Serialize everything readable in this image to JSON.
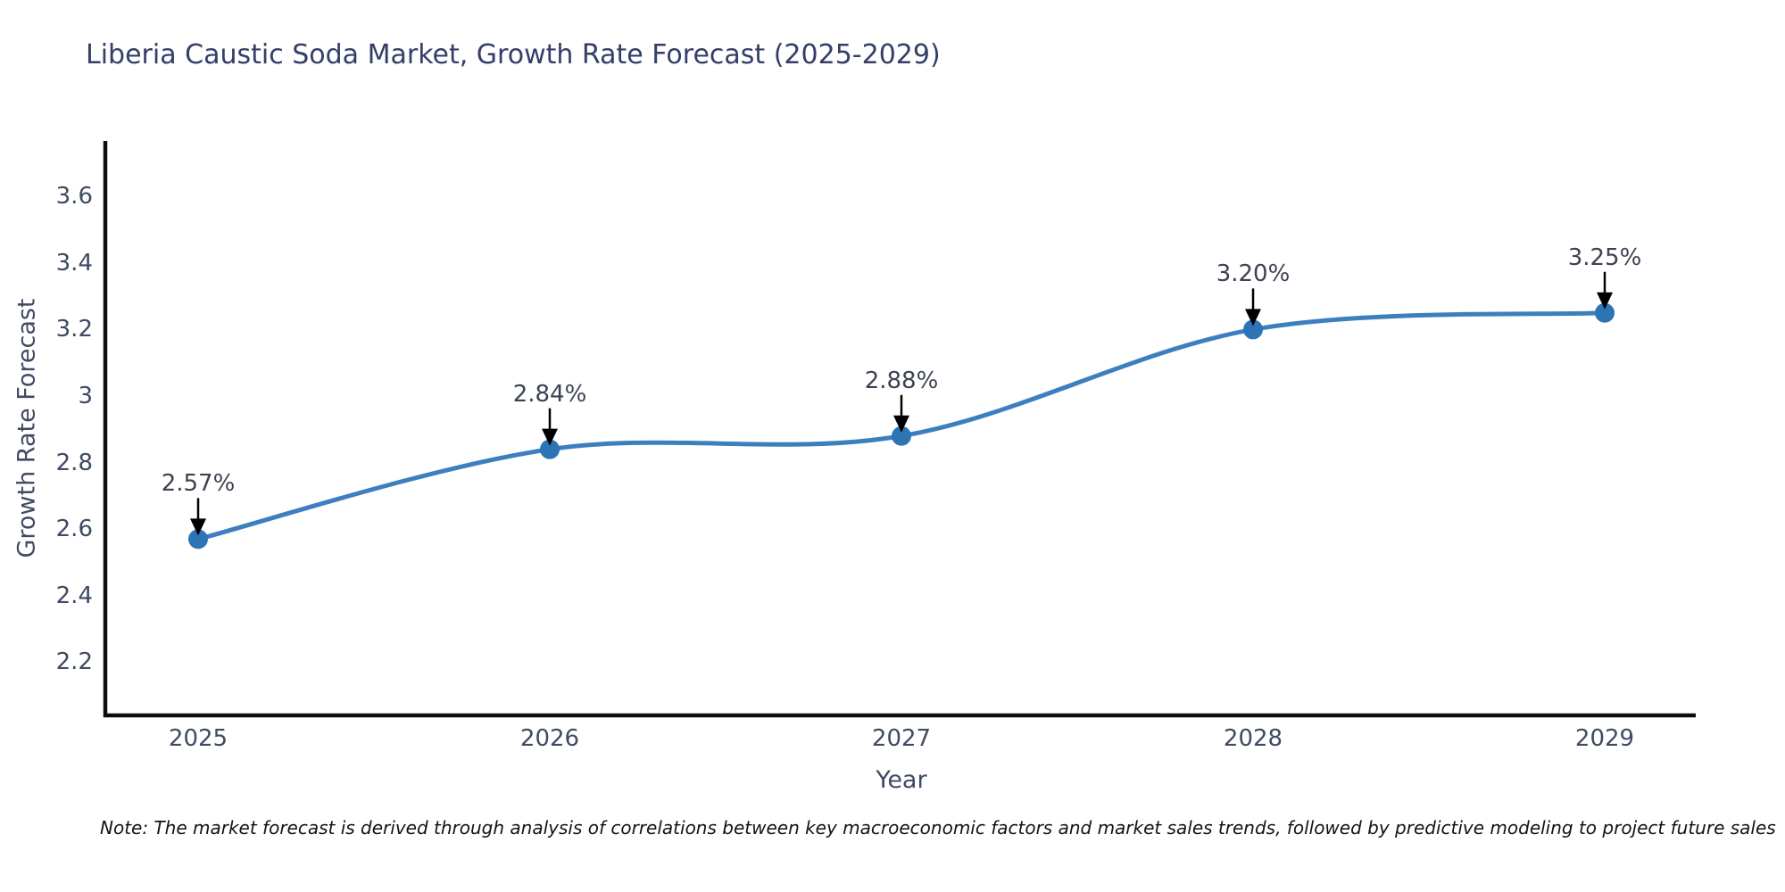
{
  "chart_data": {
    "type": "line",
    "title": "Liberia Caustic Soda Market, Growth Rate Forecast (2025-2029)",
    "xlabel": "Year",
    "ylabel": "Growth Rate Forecast",
    "x": [
      2025,
      2026,
      2027,
      2028,
      2029
    ],
    "x_tick_labels": [
      "2025",
      "2026",
      "2027",
      "2028",
      "2029"
    ],
    "values": [
      2.57,
      2.84,
      2.88,
      3.2,
      3.25
    ],
    "point_labels": [
      "2.57%",
      "2.84%",
      "2.88%",
      "3.20%",
      "3.25%"
    ],
    "y_ticks": [
      3.6,
      3.4,
      3.2,
      3.0,
      2.8,
      2.6,
      2.4,
      2.2
    ],
    "y_tick_labels": [
      "3.6",
      "3.4",
      "3.2",
      "3",
      "2.8",
      "2.6",
      "2.4",
      "2.2"
    ],
    "ylim": [
      2.02,
      3.73
    ],
    "grid": false,
    "legend_position": "none",
    "line_smoothing": "spline",
    "annotation_style": "value labels with downward arrows to markers",
    "note": "Note: The market forecast is derived through analysis of correlations between key macroeconomic factors and market sales trends, followed by predictive modeling to project future sales"
  },
  "colors": {
    "background": "#ffffff",
    "title_text": "#343e69",
    "axis_line": "#0d0d0d",
    "tick_text": "#3f4a63",
    "series_line": "#3d7fbe",
    "marker_fill": "#2d74b5",
    "annotation_text": "#3c4350",
    "annotation_arrow": "#000000",
    "note_text": "#141414"
  }
}
